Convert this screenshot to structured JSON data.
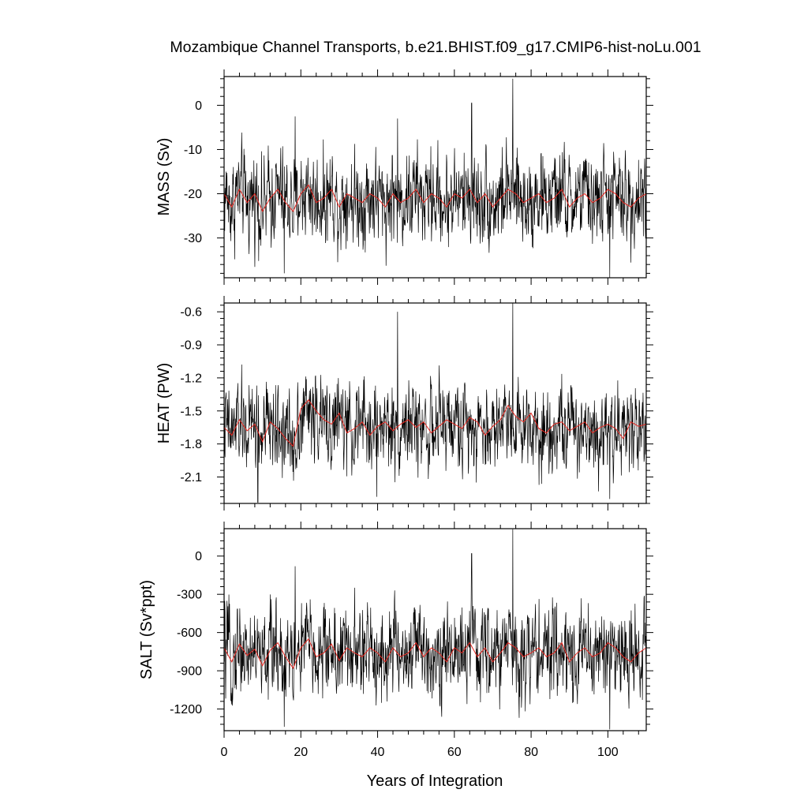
{
  "figure": {
    "title": "Mozambique Channel Transports, b.e21.BHIST.f09_g17.CMIP6-hist-noLu.001",
    "xlabel": "Years of Integration",
    "colors": {
      "raw": "#000000",
      "smoothed": "#e8261f",
      "axes": "#000000"
    }
  },
  "chart_data": [
    {
      "type": "line",
      "panel": "mass",
      "ylabel": "MASS (Sv)",
      "xlim": [
        0,
        110
      ],
      "ylim": [
        -39,
        6.5
      ],
      "x_ticks": [
        0,
        20,
        40,
        60,
        80,
        100
      ],
      "y_ticks": [
        -30,
        -20,
        -10,
        0
      ],
      "y_tick_labels": [
        "-30",
        "-20",
        "-10",
        "0"
      ],
      "grid": false,
      "raw_monthly": {
        "mean": -21,
        "amplitude": 7.5,
        "ymin": -39,
        "ymax": 6.5,
        "spikes": [
          {
            "x": 75.2,
            "y": 6
          },
          {
            "x": 64.5,
            "y": 0.5
          },
          {
            "x": 100.5,
            "y": -39
          },
          {
            "x": 15.7,
            "y": -38
          },
          {
            "x": 18.5,
            "y": -2.5
          },
          {
            "x": 45.2,
            "y": -3
          }
        ]
      },
      "series": [
        {
          "values_x": [
            0,
            2,
            4,
            6,
            8,
            10,
            12,
            14,
            16,
            18,
            20,
            22,
            24,
            26,
            28,
            30,
            32,
            34,
            36,
            38,
            40,
            42,
            44,
            46,
            48,
            50,
            52,
            54,
            56,
            58,
            60,
            62,
            64,
            66,
            68,
            70,
            72,
            74,
            76,
            78,
            80,
            82,
            84,
            86,
            88,
            90,
            92,
            94,
            96,
            98,
            100,
            102,
            104,
            106,
            108,
            110
          ],
          "values_y": [
            -20,
            -23,
            -19,
            -22,
            -20,
            -24,
            -21,
            -19,
            -22,
            -24,
            -20,
            -18,
            -22,
            -21,
            -19,
            -23,
            -20,
            -21,
            -22,
            -20,
            -21,
            -23,
            -20,
            -22,
            -21,
            -19,
            -22,
            -20,
            -21,
            -23,
            -20,
            -21,
            -19,
            -22,
            -20,
            -23,
            -21,
            -19,
            -20,
            -22,
            -21,
            -20,
            -22,
            -21,
            -19,
            -23,
            -21,
            -20,
            -22,
            -21,
            -19,
            -20,
            -22,
            -23,
            -21,
            -20
          ]
        }
      ]
    },
    {
      "type": "line",
      "panel": "heat",
      "ylabel": "HEAT (PW)",
      "xlim": [
        0,
        110
      ],
      "ylim": [
        -2.34,
        -0.52
      ],
      "x_ticks": [
        0,
        20,
        40,
        60,
        80,
        100
      ],
      "y_ticks": [
        -2.1,
        -1.8,
        -1.5,
        -1.2,
        -0.9,
        -0.6
      ],
      "y_tick_labels": [
        "-2.1",
        "-1.8",
        "-1.5",
        "-1.2",
        "-0.9",
        "-0.6"
      ],
      "grid": false,
      "raw_monthly": {
        "mean": -1.65,
        "amplitude": 0.28,
        "ymin": -2.34,
        "ymax": -0.52,
        "spikes": [
          {
            "x": 75.2,
            "y": -0.52
          },
          {
            "x": 45.2,
            "y": -0.6
          },
          {
            "x": 8.8,
            "y": -2.33
          },
          {
            "x": 100.5,
            "y": -2.3
          },
          {
            "x": 39.8,
            "y": -2.28
          }
        ]
      },
      "series": [
        {
          "values_x": [
            0,
            2,
            4,
            6,
            8,
            10,
            12,
            14,
            16,
            18,
            20,
            22,
            24,
            26,
            28,
            30,
            32,
            34,
            36,
            38,
            40,
            42,
            44,
            46,
            48,
            50,
            52,
            54,
            56,
            58,
            60,
            62,
            64,
            66,
            68,
            70,
            72,
            74,
            76,
            78,
            80,
            82,
            84,
            86,
            88,
            90,
            92,
            94,
            96,
            98,
            100,
            102,
            104,
            106,
            108,
            110
          ],
          "values_y": [
            -1.65,
            -1.72,
            -1.58,
            -1.68,
            -1.62,
            -1.78,
            -1.6,
            -1.66,
            -1.75,
            -1.82,
            -1.48,
            -1.4,
            -1.5,
            -1.58,
            -1.62,
            -1.52,
            -1.7,
            -1.66,
            -1.6,
            -1.72,
            -1.64,
            -1.6,
            -1.68,
            -1.62,
            -1.58,
            -1.65,
            -1.6,
            -1.7,
            -1.64,
            -1.58,
            -1.62,
            -1.66,
            -1.56,
            -1.6,
            -1.72,
            -1.64,
            -1.58,
            -1.45,
            -1.55,
            -1.6,
            -1.52,
            -1.66,
            -1.7,
            -1.62,
            -1.6,
            -1.68,
            -1.64,
            -1.6,
            -1.7,
            -1.65,
            -1.62,
            -1.66,
            -1.75,
            -1.6,
            -1.64,
            -1.62
          ]
        }
      ]
    },
    {
      "type": "line",
      "panel": "salt",
      "ylabel": "SALT (Sv*ppt)",
      "xlim": [
        0,
        110
      ],
      "ylim": [
        -1370,
        215
      ],
      "x_ticks": [
        0,
        20,
        40,
        60,
        80,
        100
      ],
      "x_tick_labels": [
        "0",
        "20",
        "40",
        "60",
        "80",
        "100"
      ],
      "y_ticks": [
        -1200,
        -900,
        -600,
        -300,
        0
      ],
      "y_tick_labels": [
        "-1200",
        "-900",
        "-600",
        "-300",
        "0"
      ],
      "grid": false,
      "raw_monthly": {
        "mean": -750,
        "amplitude": 260,
        "ymin": -1370,
        "ymax": 215,
        "spikes": [
          {
            "x": 75.2,
            "y": 210
          },
          {
            "x": 64.5,
            "y": 20
          },
          {
            "x": 100.5,
            "y": -1360
          },
          {
            "x": 15.7,
            "y": -1340
          },
          {
            "x": 18.5,
            "y": -80
          }
        ]
      },
      "series": [
        {
          "values_x": [
            0,
            2,
            4,
            6,
            8,
            10,
            12,
            14,
            16,
            18,
            20,
            22,
            24,
            26,
            28,
            30,
            32,
            34,
            36,
            38,
            40,
            42,
            44,
            46,
            48,
            50,
            52,
            54,
            56,
            58,
            60,
            62,
            64,
            66,
            68,
            70,
            72,
            74,
            76,
            78,
            80,
            82,
            84,
            86,
            88,
            90,
            92,
            94,
            96,
            98,
            100,
            102,
            104,
            106,
            108,
            110
          ],
          "values_y": [
            -720,
            -830,
            -690,
            -780,
            -730,
            -860,
            -740,
            -680,
            -790,
            -880,
            -720,
            -650,
            -790,
            -760,
            -690,
            -820,
            -720,
            -760,
            -790,
            -720,
            -760,
            -830,
            -720,
            -790,
            -760,
            -680,
            -790,
            -720,
            -760,
            -830,
            -720,
            -760,
            -680,
            -790,
            -720,
            -830,
            -760,
            -680,
            -720,
            -790,
            -760,
            -720,
            -790,
            -760,
            -680,
            -830,
            -760,
            -720,
            -790,
            -760,
            -680,
            -720,
            -790,
            -830,
            -760,
            -720
          ]
        }
      ]
    }
  ]
}
